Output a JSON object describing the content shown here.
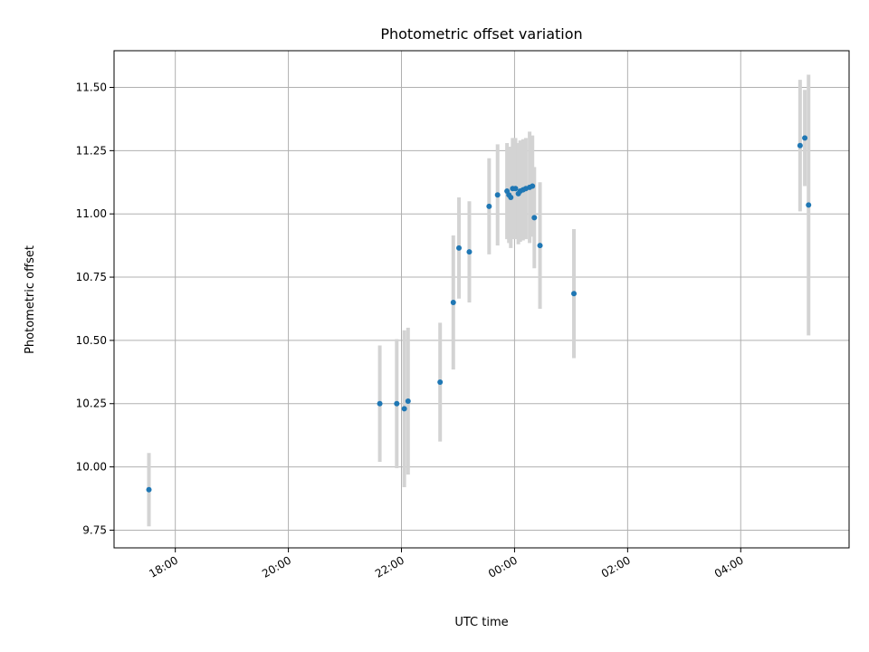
{
  "chart_data": {
    "type": "scatter",
    "title": "Photometric offset variation",
    "xlabel": "UTC time",
    "ylabel": "Photometric offset",
    "x_axis_type": "time",
    "xlim": [
      "2023-01-01T16:55",
      "2023-01-02T05:55"
    ],
    "ylim": [
      9.68,
      11.645
    ],
    "grid": true,
    "x_ticks": [
      {
        "t": "2023-01-01T18:00",
        "label": "18:00"
      },
      {
        "t": "2023-01-01T20:00",
        "label": "20:00"
      },
      {
        "t": "2023-01-01T22:00",
        "label": "22:00"
      },
      {
        "t": "2023-01-02T00:00",
        "label": "00:00"
      },
      {
        "t": "2023-01-02T02:00",
        "label": "02:00"
      },
      {
        "t": "2023-01-02T04:00",
        "label": "04:00"
      }
    ],
    "y_ticks": [
      9.75,
      10.0,
      10.25,
      10.5,
      10.75,
      11.0,
      11.25,
      11.5
    ],
    "y_tick_labels": [
      "9.75",
      "10.00",
      "10.25",
      "10.50",
      "10.75",
      "11.00",
      "11.25",
      "11.50"
    ],
    "colors": {
      "point": "#1f77b4",
      "errorbar": "#d3d3d3",
      "grid": "#b0b0b0"
    },
    "series": [
      {
        "points": [
          {
            "t": "2023-01-01T17:32",
            "y": 9.91,
            "err": 0.145
          },
          {
            "t": "2023-01-01T21:37",
            "y": 10.25,
            "err": 0.23
          },
          {
            "t": "2023-01-01T21:55",
            "y": 10.25,
            "err": 0.255
          },
          {
            "t": "2023-01-01T22:03",
            "y": 10.23,
            "err": 0.31
          },
          {
            "t": "2023-01-01T22:07",
            "y": 10.26,
            "err": 0.29
          },
          {
            "t": "2023-01-01T22:41",
            "y": 10.335,
            "err": 0.235
          },
          {
            "t": "2023-01-01T22:55",
            "y": 10.65,
            "err": 0.265
          },
          {
            "t": "2023-01-01T23:01",
            "y": 10.865,
            "err": 0.2
          },
          {
            "t": "2023-01-01T23:12",
            "y": 10.85,
            "err": 0.2
          },
          {
            "t": "2023-01-01T23:33",
            "y": 11.03,
            "err": 0.19
          },
          {
            "t": "2023-01-01T23:42",
            "y": 11.075,
            "err": 0.2
          },
          {
            "t": "2023-01-01T23:52",
            "y": 11.09,
            "err": 0.19
          },
          {
            "t": "2023-01-01T23:54",
            "y": 11.075,
            "err": 0.19
          },
          {
            "t": "2023-01-01T23:56",
            "y": 11.065,
            "err": 0.2
          },
          {
            "t": "2023-01-01T23:58",
            "y": 11.1,
            "err": 0.2
          },
          {
            "t": "2023-01-02T00:01",
            "y": 11.1,
            "err": 0.2
          },
          {
            "t": "2023-01-02T00:04",
            "y": 11.08,
            "err": 0.2
          },
          {
            "t": "2023-01-02T00:06",
            "y": 11.09,
            "err": 0.2
          },
          {
            "t": "2023-01-02T00:09",
            "y": 11.095,
            "err": 0.2
          },
          {
            "t": "2023-01-02T00:12",
            "y": 11.1,
            "err": 0.2
          },
          {
            "t": "2023-01-02T00:16",
            "y": 11.105,
            "err": 0.22
          },
          {
            "t": "2023-01-02T00:19",
            "y": 11.11,
            "err": 0.2
          },
          {
            "t": "2023-01-02T00:21",
            "y": 10.985,
            "err": 0.2
          },
          {
            "t": "2023-01-02T00:27",
            "y": 10.875,
            "err": 0.25
          },
          {
            "t": "2023-01-02T01:03",
            "y": 10.685,
            "err": 0.255
          },
          {
            "t": "2023-01-02T05:03",
            "y": 11.27,
            "err": 0.26
          },
          {
            "t": "2023-01-02T05:08",
            "y": 11.3,
            "err": 0.19
          },
          {
            "t": "2023-01-02T05:12",
            "y": 11.035,
            "err": 0.515
          }
        ]
      }
    ]
  }
}
